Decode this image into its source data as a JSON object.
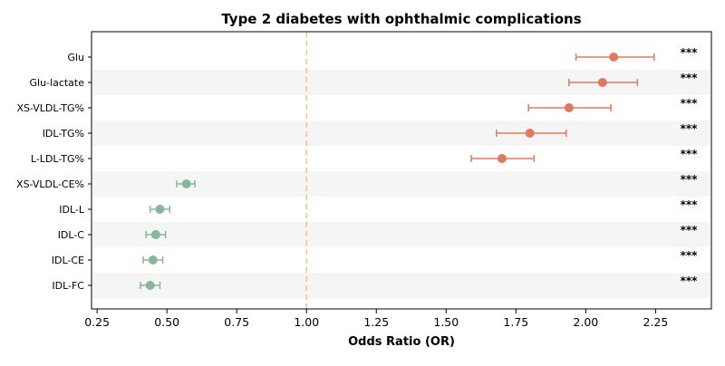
{
  "chart_data": {
    "type": "scatter",
    "subtype": "forest-plot",
    "title": "Type 2 diabetes with ophthalmic complications",
    "xlabel": "Odds Ratio (OR)",
    "ylabel": "",
    "xlim": [
      0.23,
      2.45
    ],
    "xticks": [
      "0.25",
      "0.50",
      "0.75",
      "1.00",
      "1.25",
      "1.50",
      "1.75",
      "2.00",
      "2.25"
    ],
    "reference_line": 1.0,
    "reference_line_color": "#f5c48a",
    "stripe_color": "#f5f5f5",
    "colors": {
      "risk": "#e07a5f",
      "protective": "#88b59b"
    },
    "categories": [
      "Glu",
      "Glu-lactate",
      "XS-VLDL-TG%",
      "IDL-TG%",
      "L-LDL-TG%",
      "XS-VLDL-CE%",
      "IDL-L",
      "IDL-C",
      "IDL-CE",
      "IDL-FC"
    ],
    "or": [
      2.1,
      2.06,
      1.94,
      1.8,
      1.7,
      0.57,
      0.475,
      0.46,
      0.45,
      0.44
    ],
    "lower": [
      1.965,
      1.94,
      1.795,
      1.68,
      1.59,
      0.535,
      0.44,
      0.425,
      0.415,
      0.405
    ],
    "upper": [
      2.245,
      2.185,
      2.09,
      1.93,
      1.815,
      0.6,
      0.51,
      0.495,
      0.485,
      0.475
    ],
    "significance": [
      "***",
      "***",
      "***",
      "***",
      "***",
      "***",
      "***",
      "***",
      "***",
      "***"
    ],
    "grid": false,
    "legend": "none"
  }
}
